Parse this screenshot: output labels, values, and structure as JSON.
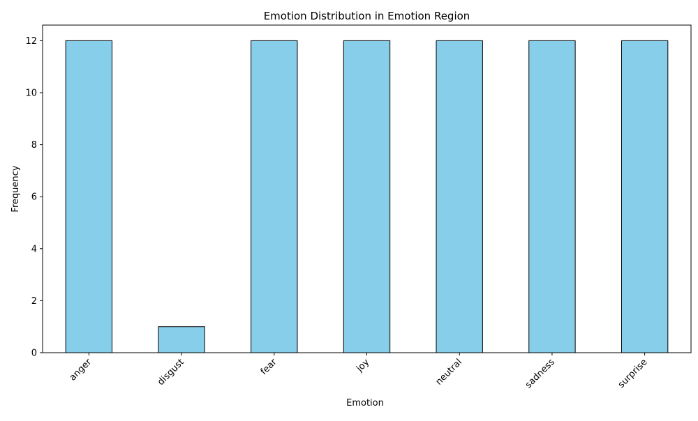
{
  "chart_data": {
    "type": "bar",
    "title": "Emotion Distribution in Emotion Region",
    "xlabel": "Emotion",
    "ylabel": "Frequency",
    "categories": [
      "anger",
      "disgust",
      "fear",
      "joy",
      "neutral",
      "sadness",
      "surprise"
    ],
    "values": [
      12,
      1,
      12,
      12,
      12,
      12,
      12
    ],
    "ylim": [
      0,
      12.6
    ],
    "yticks": [
      0,
      2,
      4,
      6,
      8,
      10,
      12
    ],
    "bar_color": "#87ceeb",
    "edge_color": "#000000",
    "grid": false,
    "legend": "none"
  }
}
